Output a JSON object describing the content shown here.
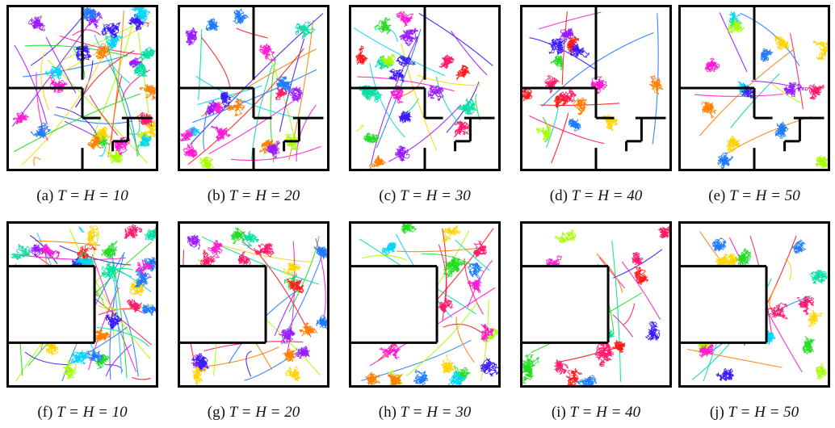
{
  "figure": {
    "rows": [
      {
        "layout": "four-rooms",
        "panels": [
          {
            "label": "(a)",
            "math": "T = H = 10",
            "regime": "dense"
          },
          {
            "label": "(b)",
            "math": "T = H = 20",
            "regime": "medium"
          },
          {
            "label": "(c)",
            "math": "T = H = 30",
            "regime": "medium"
          },
          {
            "label": "(d)",
            "math": "T = H = 40",
            "regime": "sparse"
          },
          {
            "label": "(e)",
            "math": "T = H = 50",
            "regime": "sparse"
          }
        ]
      },
      {
        "layout": "u-maze",
        "panels": [
          {
            "label": "(f)",
            "math": "T = H = 10",
            "regime": "dense"
          },
          {
            "label": "(g)",
            "math": "T = H = 20",
            "regime": "medium"
          },
          {
            "label": "(h)",
            "math": "T = H = 30",
            "regime": "medium"
          },
          {
            "label": "(i)",
            "math": "T = H = 40",
            "regime": "sparse"
          },
          {
            "label": "(j)",
            "math": "T = H = 50",
            "regime": "sparse"
          }
        ]
      }
    ]
  }
}
